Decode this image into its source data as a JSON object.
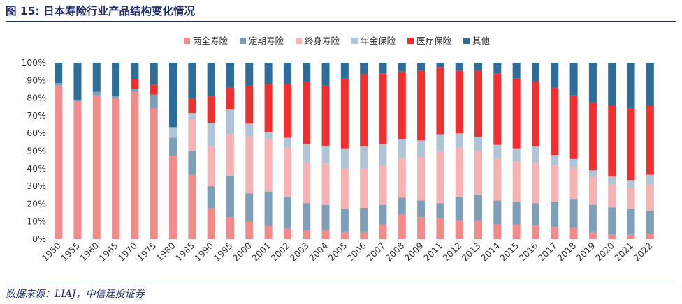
{
  "figure": {
    "title": "图 15: 日本寿险行业产品结构变化情况",
    "source": "数据来源：LIAJ，中信建投证券"
  },
  "chart_data": {
    "type": "bar",
    "stacked": true,
    "title": "图 15: 日本寿险行业产品结构变化情况",
    "xlabel": "",
    "ylabel": "",
    "ylim": [
      0,
      100
    ],
    "y_ticks": [
      "0%",
      "10%",
      "20%",
      "30%",
      "40%",
      "50%",
      "60%",
      "70%",
      "80%",
      "90%",
      "100%"
    ],
    "legend_position": "top",
    "categories": [
      "1950",
      "1955",
      "1960",
      "1965",
      "1970",
      "1975",
      "1980",
      "1985",
      "1990",
      "1995",
      "2000",
      "2001",
      "2002",
      "2003",
      "2004",
      "2005",
      "2006",
      "2007",
      "2008",
      "2009",
      "2011",
      "2012",
      "2013",
      "2014",
      "2015",
      "2016",
      "2017",
      "2018",
      "2019",
      "2020",
      "2021",
      "2022"
    ],
    "series": [
      {
        "name": "两全寿险",
        "color": "#f48b8b",
        "values": [
          87,
          78,
          81.5,
          80,
          83.5,
          74,
          47,
          36.5,
          17.5,
          12.5,
          10,
          7.5,
          6,
          5,
          5,
          4,
          4,
          8.5,
          14,
          12.5,
          12,
          10.5,
          10.5,
          8.5,
          8.5,
          8,
          7,
          6.5,
          4,
          2.5,
          2.5,
          3
        ]
      },
      {
        "name": "定期寿险",
        "color": "#7f9fb8",
        "values": [
          1.5,
          1,
          2,
          1,
          1.5,
          8,
          10.5,
          13.5,
          12.5,
          23.5,
          16,
          19.5,
          18,
          15.5,
          14.5,
          13,
          13.5,
          11,
          9.5,
          9.5,
          8.5,
          13.5,
          14.5,
          13.5,
          12.5,
          12.5,
          14,
          16,
          15.5,
          15.5,
          14.5,
          13
        ]
      },
      {
        "name": "终身寿险",
        "color": "#f7b3b3",
        "values": [
          0,
          0,
          0,
          0,
          0,
          0,
          0,
          18,
          22.5,
          23.5,
          32,
          30,
          28,
          23,
          23.5,
          23,
          22.5,
          22.5,
          22.5,
          24.5,
          29,
          28,
          25,
          24,
          23,
          22.5,
          21,
          18,
          15.5,
          13,
          12,
          15
        ]
      },
      {
        "name": "年金保险",
        "color": "#b0c4d8",
        "values": [
          0,
          0,
          0,
          0,
          0,
          0,
          6,
          3.5,
          13.5,
          14,
          7.5,
          3.5,
          5.5,
          10.5,
          10,
          11.5,
          12.5,
          12,
          10.5,
          9.5,
          10,
          8,
          8,
          7.5,
          7.5,
          9.5,
          5.5,
          5,
          4,
          4.5,
          4.5,
          5.5
        ]
      },
      {
        "name": "医疗保险",
        "color": "#f03030",
        "values": [
          0,
          0,
          0,
          0,
          5.5,
          5.5,
          0,
          8,
          15,
          12.5,
          21.5,
          27.5,
          30.5,
          35,
          34,
          39.5,
          41,
          40,
          38.5,
          39.5,
          38,
          35.5,
          37.5,
          40.5,
          39.5,
          37,
          38.5,
          36,
          38.5,
          40,
          40.5,
          39
        ]
      },
      {
        "name": "其他",
        "color": "#2e6c99",
        "values": [
          11.5,
          21,
          16.5,
          19,
          9.5,
          12.5,
          36.5,
          20.5,
          19,
          14,
          13,
          12,
          12,
          11,
          13,
          9,
          6.5,
          6,
          5,
          4.5,
          2.5,
          4.5,
          4.5,
          6,
          9,
          10.5,
          14,
          18.5,
          22.5,
          24.5,
          26,
          24.5
        ]
      }
    ]
  }
}
